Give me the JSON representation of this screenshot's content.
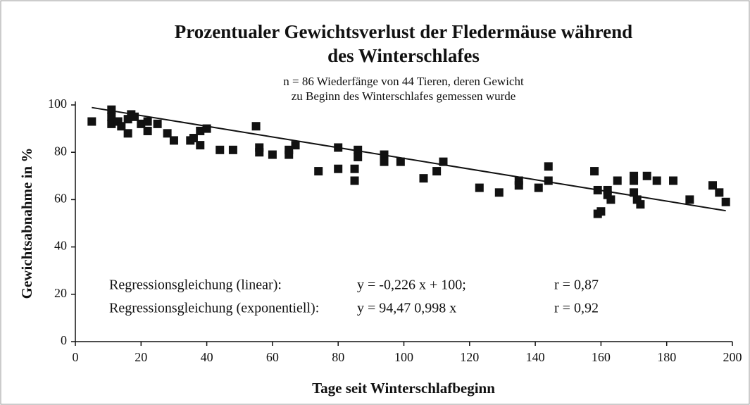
{
  "chart_data": {
    "type": "scatter",
    "title": [
      "Prozentualer Gewichtsverlust der Fledermäuse während",
      "des Winterschlafes"
    ],
    "subtitle": [
      "n = 86 Wiederfänge von 44 Tieren, deren Gewicht",
      "zu Beginn des Winterschlafes gemessen wurde"
    ],
    "x_label": "Tage seit Winterschlafbeginn",
    "y_label": "Gewichtsabnahme in  %",
    "xlim": [
      0,
      200
    ],
    "ylim": [
      0,
      100
    ],
    "xticks": [
      0,
      20,
      40,
      60,
      80,
      100,
      120,
      140,
      160,
      180,
      200
    ],
    "yticks": [
      0,
      20,
      40,
      60,
      80,
      100
    ],
    "color": "#111111",
    "x": [
      5,
      11,
      11,
      11,
      13,
      14,
      16,
      16,
      17,
      18,
      20,
      22,
      22,
      25,
      28,
      30,
      35,
      36,
      38,
      38,
      40,
      44,
      48,
      55,
      56,
      56,
      60,
      65,
      65,
      67,
      74,
      80,
      80,
      85,
      85,
      86,
      86,
      94,
      94,
      99,
      106,
      110,
      112,
      123,
      129,
      135,
      135,
      141,
      144,
      144,
      158,
      159,
      159,
      160,
      162,
      162,
      163,
      165,
      170,
      170,
      170,
      171,
      172,
      174,
      177,
      182,
      187,
      194,
      196,
      198
    ],
    "values": [
      93,
      98,
      95,
      92,
      93,
      91,
      94,
      88,
      96,
      95,
      92,
      93,
      89,
      92,
      88,
      85,
      85,
      86,
      83,
      89,
      90,
      81,
      81,
      91,
      82,
      80,
      79,
      81,
      79,
      83,
      72,
      73,
      82,
      73,
      68,
      81,
      78,
      79,
      76,
      76,
      69,
      72,
      76,
      65,
      63,
      68,
      66,
      65,
      74,
      68,
      72,
      64,
      54,
      55,
      64,
      62,
      60,
      68,
      70,
      68,
      63,
      60,
      58,
      70,
      68,
      68,
      60,
      66,
      63,
      59
    ],
    "regression": {
      "x": [
        5,
        198
      ],
      "values": [
        98.9,
        55.3
      ]
    },
    "annotations": [
      [
        "Regressionsgleichung (linear):",
        "y = -0,226  x + 100;",
        "r = 0,87"
      ],
      [
        "Regressionsgleichung (exponentiell):",
        "y = 94,47  0,998 x",
        "r = 0,92"
      ]
    ]
  }
}
